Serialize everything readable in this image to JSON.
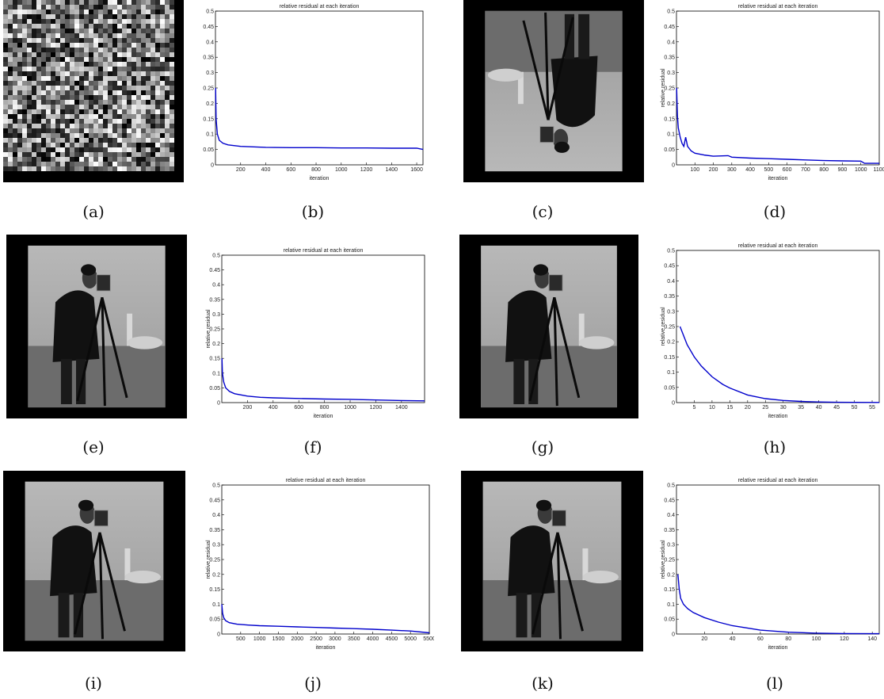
{
  "captions": [
    "(a)",
    "(b)",
    "(c)",
    "(d)",
    "(e)",
    "(f)",
    "(g)",
    "(h)",
    "(i)",
    "(j)",
    "(k)",
    "(l)"
  ],
  "colors": {
    "line": "#0000cc",
    "axis": "#000000"
  },
  "images": [
    {
      "panel": "a",
      "kind": "noise-texture"
    },
    {
      "panel": "c",
      "kind": "cameraman-upside-down"
    },
    {
      "panel": "e",
      "kind": "cameraman"
    },
    {
      "panel": "g",
      "kind": "cameraman"
    },
    {
      "panel": "i",
      "kind": "cameraman"
    },
    {
      "panel": "k",
      "kind": "cameraman"
    }
  ],
  "chart_data": [
    {
      "panel": "b",
      "type": "line",
      "title": "relative residual at each iteration",
      "xlabel": "iteration",
      "ylabel": "",
      "xlim": [
        0,
        1650
      ],
      "ylim": [
        0,
        0.5
      ],
      "xticks": [
        200,
        400,
        600,
        800,
        1000,
        1200,
        1400,
        1600
      ],
      "yticks": [
        0.05,
        0.1,
        0.15,
        0.2,
        0.25,
        0.3,
        0.35,
        0.4,
        0.45,
        0.5
      ],
      "series": [
        {
          "x": [
            1,
            5,
            15,
            30,
            60,
            100,
            200,
            400,
            600,
            800,
            1000,
            1200,
            1400,
            1600,
            1650
          ],
          "y": [
            0.25,
            0.15,
            0.1,
            0.08,
            0.07,
            0.065,
            0.06,
            0.057,
            0.056,
            0.056,
            0.055,
            0.055,
            0.054,
            0.054,
            0.05
          ]
        }
      ]
    },
    {
      "panel": "d",
      "type": "line",
      "title": "relative residual at each iteration",
      "xlabel": "iteration",
      "ylabel": "relative residual",
      "xlim": [
        0,
        1100
      ],
      "ylim": [
        0,
        0.5
      ],
      "xticks": [
        100,
        200,
        300,
        400,
        500,
        600,
        700,
        800,
        900,
        1000,
        1100
      ],
      "yticks": [
        0.05,
        0.1,
        0.15,
        0.2,
        0.25,
        0.3,
        0.35,
        0.4,
        0.45,
        0.5
      ],
      "series": [
        {
          "x": [
            1,
            5,
            10,
            20,
            30,
            40,
            50,
            60,
            80,
            100,
            150,
            200,
            280,
            300,
            400,
            500,
            600,
            700,
            800,
            900,
            1000,
            1020,
            1100
          ],
          "y": [
            0.25,
            0.16,
            0.12,
            0.09,
            0.07,
            0.06,
            0.09,
            0.06,
            0.045,
            0.038,
            0.032,
            0.028,
            0.03,
            0.025,
            0.022,
            0.02,
            0.018,
            0.016,
            0.014,
            0.013,
            0.012,
            0.005,
            0.005
          ]
        }
      ]
    },
    {
      "panel": "f",
      "type": "line",
      "title": "relative residual at each iteration",
      "xlabel": "iteration",
      "ylabel": "relative residual",
      "xlim": [
        0,
        1580
      ],
      "ylim": [
        0,
        0.5
      ],
      "xticks": [
        200,
        400,
        600,
        800,
        1000,
        1200,
        1400
      ],
      "yticks": [
        0.05,
        0.1,
        0.15,
        0.2,
        0.25,
        0.3,
        0.35,
        0.4,
        0.45,
        0.5
      ],
      "series": [
        {
          "x": [
            1,
            5,
            15,
            30,
            60,
            100,
            200,
            300,
            400,
            600,
            800,
            1000,
            1200,
            1400,
            1580
          ],
          "y": [
            0.15,
            0.1,
            0.07,
            0.05,
            0.038,
            0.03,
            0.022,
            0.018,
            0.016,
            0.014,
            0.012,
            0.011,
            0.009,
            0.007,
            0.006
          ]
        }
      ]
    },
    {
      "panel": "h",
      "type": "line",
      "title": "relative residual at each iteration",
      "xlabel": "iteration",
      "ylabel": "relative residual",
      "xlim": [
        0,
        57
      ],
      "ylim": [
        0,
        0.5
      ],
      "xticks": [
        5,
        10,
        15,
        20,
        25,
        30,
        35,
        40,
        45,
        50,
        55
      ],
      "yticks": [
        0.05,
        0.1,
        0.15,
        0.2,
        0.25,
        0.3,
        0.35,
        0.4,
        0.45,
        0.5
      ],
      "series": [
        {
          "x": [
            1,
            2,
            3,
            5,
            7,
            10,
            13,
            15,
            20,
            25,
            30,
            35,
            40,
            45,
            50,
            57
          ],
          "y": [
            0.25,
            0.22,
            0.19,
            0.15,
            0.12,
            0.085,
            0.06,
            0.048,
            0.025,
            0.013,
            0.007,
            0.004,
            0.002,
            0.001,
            0.0008,
            0.0005
          ]
        }
      ]
    },
    {
      "panel": "j",
      "type": "line",
      "title": "relative residual at each iteration",
      "xlabel": "iteration",
      "ylabel": "relative residual",
      "xlim": [
        0,
        5500
      ],
      "ylim": [
        0,
        0.5
      ],
      "xticks": [
        500,
        1000,
        1500,
        2000,
        2500,
        3000,
        3500,
        4000,
        4500,
        5000,
        5500
      ],
      "yticks": [
        0.05,
        0.1,
        0.15,
        0.2,
        0.25,
        0.3,
        0.35,
        0.4,
        0.45,
        0.5
      ],
      "series": [
        {
          "x": [
            1,
            20,
            50,
            100,
            200,
            400,
            700,
            1000,
            1500,
            2000,
            2500,
            3000,
            3500,
            4000,
            4500,
            5000,
            5500
          ],
          "y": [
            0.1,
            0.07,
            0.055,
            0.045,
            0.038,
            0.033,
            0.03,
            0.028,
            0.026,
            0.024,
            0.022,
            0.02,
            0.018,
            0.016,
            0.013,
            0.01,
            0.004
          ]
        }
      ]
    },
    {
      "panel": "l",
      "type": "line",
      "title": "relative residual at each iteration",
      "xlabel": "iteration",
      "ylabel": "relative residual",
      "xlim": [
        0,
        145
      ],
      "ylim": [
        0,
        0.5
      ],
      "xticks": [
        20,
        40,
        60,
        80,
        100,
        120,
        140
      ],
      "yticks": [
        0.05,
        0.1,
        0.15,
        0.2,
        0.25,
        0.3,
        0.35,
        0.4,
        0.45,
        0.5
      ],
      "series": [
        {
          "x": [
            1,
            2,
            3,
            5,
            8,
            12,
            20,
            30,
            40,
            60,
            80,
            100,
            120,
            145
          ],
          "y": [
            0.2,
            0.15,
            0.12,
            0.1,
            0.085,
            0.072,
            0.055,
            0.04,
            0.028,
            0.013,
            0.006,
            0.003,
            0.0015,
            0.001
          ]
        }
      ]
    }
  ]
}
